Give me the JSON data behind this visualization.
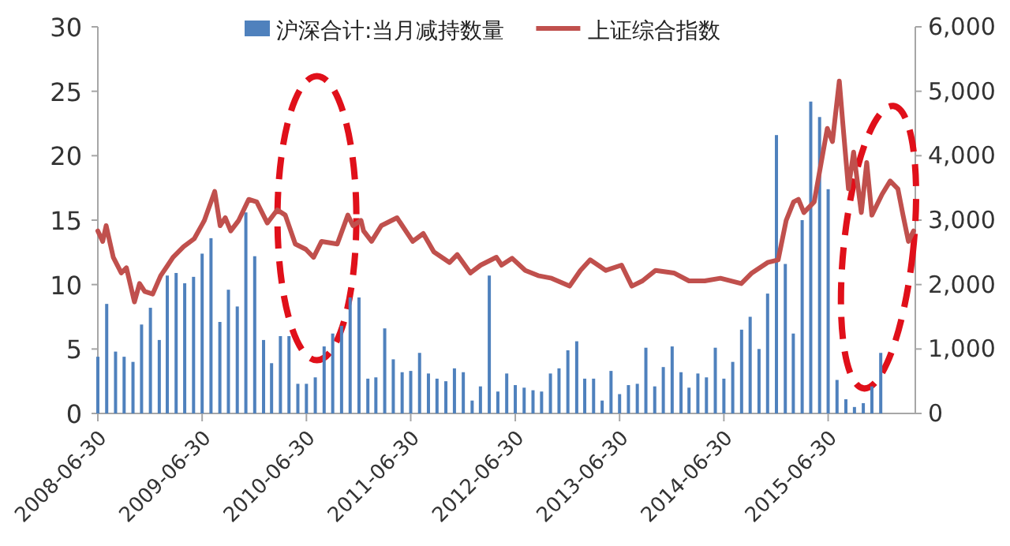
{
  "chart_data": {
    "type": "bar",
    "xlim": [
      "2008-06-30",
      "2016-04-30"
    ],
    "xticks": [
      "2008-06-30",
      "2009-06-30",
      "2010-06-30",
      "2011-06-30",
      "2012-06-30",
      "2013-06-30",
      "2014-06-30",
      "2015-06-30"
    ],
    "ylim": [
      0,
      30
    ],
    "yticks": [
      0,
      5,
      10,
      15,
      20,
      25,
      30
    ],
    "y2lim": [
      0,
      6000
    ],
    "y2ticks": [
      0,
      {
        "value": 1000,
        "label": "1,000"
      },
      {
        "value": 2000,
        "label": "2,000"
      },
      {
        "value": 3000,
        "label": "3,000"
      },
      {
        "value": 4000,
        "label": "4,000"
      },
      {
        "value": 5000,
        "label": "5,000"
      },
      {
        "value": 6000,
        "label": "6,000"
      }
    ],
    "legend": "top",
    "series": [
      {
        "name": "沪深合计:当月减持数量",
        "color": "#4f81bd",
        "x": [
          "2008-06-30",
          "2008-07-31",
          "2008-08-31",
          "2008-09-30",
          "2008-10-31",
          "2008-11-30",
          "2008-12-31",
          "2009-01-31",
          "2009-02-28",
          "2009-03-31",
          "2009-04-30",
          "2009-05-31",
          "2009-06-30",
          "2009-07-31",
          "2009-08-31",
          "2009-09-30",
          "2009-10-31",
          "2009-11-30",
          "2009-12-31",
          "2010-01-31",
          "2010-02-28",
          "2010-03-31",
          "2010-04-30",
          "2010-05-31",
          "2010-06-30",
          "2010-07-31",
          "2010-08-31",
          "2010-09-30",
          "2010-10-31",
          "2010-11-30",
          "2010-12-31",
          "2011-01-31",
          "2011-02-28",
          "2011-03-31",
          "2011-04-30",
          "2011-05-31",
          "2011-06-30",
          "2011-07-31",
          "2011-08-31",
          "2011-09-30",
          "2011-10-31",
          "2011-11-30",
          "2011-12-31",
          "2012-01-31",
          "2012-02-29",
          "2012-03-31",
          "2012-04-30",
          "2012-05-31",
          "2012-06-30",
          "2012-07-31",
          "2012-08-31",
          "2012-09-30",
          "2012-10-31",
          "2012-11-30",
          "2012-12-31",
          "2013-01-31",
          "2013-02-28",
          "2013-03-31",
          "2013-04-30",
          "2013-05-31",
          "2013-06-30",
          "2013-07-31",
          "2013-08-31",
          "2013-09-30",
          "2013-10-31",
          "2013-11-30",
          "2013-12-31",
          "2014-01-31",
          "2014-02-28",
          "2014-03-31",
          "2014-04-30",
          "2014-05-31",
          "2014-06-30",
          "2014-07-31",
          "2014-08-31",
          "2014-09-30",
          "2014-10-31",
          "2014-11-30",
          "2014-12-31",
          "2015-01-31",
          "2015-02-28",
          "2015-03-31",
          "2015-04-30",
          "2015-05-31",
          "2015-06-30",
          "2015-07-31",
          "2015-08-31",
          "2015-09-30",
          "2015-10-31",
          "2015-11-30",
          "2015-12-31"
        ],
        "values": [
          4.4,
          8.5,
          4.8,
          4.4,
          4.0,
          6.9,
          8.2,
          5.7,
          10.7,
          10.9,
          10.1,
          10.6,
          12.4,
          13.6,
          7.1,
          9.6,
          8.3,
          15.6,
          12.2,
          5.7,
          3.9,
          6.0,
          6.0,
          2.3,
          2.3,
          2.8,
          5.2,
          6.2,
          6.8,
          9.0,
          9.0,
          2.7,
          2.8,
          6.6,
          4.2,
          3.2,
          3.3,
          4.7,
          3.1,
          2.7,
          2.5,
          3.5,
          3.2,
          1.0,
          2.1,
          10.7,
          1.7,
          3.1,
          2.2,
          2.0,
          1.8,
          1.7,
          3.1,
          3.5,
          4.9,
          5.6,
          2.7,
          2.7,
          1.0,
          3.3,
          1.5,
          2.2,
          2.3,
          5.1,
          2.1,
          3.6,
          5.2,
          3.2,
          2.0,
          3.1,
          2.8,
          5.1,
          2.7,
          4.0,
          6.5,
          7.5,
          5.0,
          9.3,
          21.6,
          11.6,
          6.2,
          15.0,
          24.2,
          23.0,
          17.4,
          2.6,
          1.1,
          0.5,
          0.8,
          2.1,
          4.7
        ]
      },
      {
        "name": "上证综合指数",
        "type": "line",
        "axis": "y2",
        "color": "#c0504d",
        "x": [
          "2008-06-30",
          "2008-07-17",
          "2008-07-29",
          "2008-08-23",
          "2008-09-20",
          "2008-10-08",
          "2008-11-05",
          "2008-11-23",
          "2008-12-11",
          "2009-01-08",
          "2009-02-05",
          "2009-03-02",
          "2009-03-20",
          "2009-04-26",
          "2009-06-02",
          "2009-07-08",
          "2009-08-13",
          "2009-09-01",
          "2009-09-19",
          "2009-10-08",
          "2009-11-05",
          "2009-12-10",
          "2010-01-07",
          "2010-02-13",
          "2010-03-20",
          "2010-04-17",
          "2010-05-22",
          "2010-06-28",
          "2010-07-25",
          "2010-08-22",
          "2010-10-16",
          "2010-11-22",
          "2010-12-10",
          "2011-01-07",
          "2011-01-16",
          "2011-02-13",
          "2011-03-19",
          "2011-05-13",
          "2011-07-07",
          "2011-08-13",
          "2011-09-19",
          "2011-11-13",
          "2011-12-10",
          "2012-01-25",
          "2012-03-01",
          "2012-04-25",
          "2012-05-13",
          "2012-06-19",
          "2012-08-04",
          "2012-09-18",
          "2012-11-04",
          "2013-01-06",
          "2013-02-13",
          "2013-03-19",
          "2013-05-13",
          "2013-07-07",
          "2013-08-12",
          "2013-09-18",
          "2013-11-03",
          "2014-01-06",
          "2014-02-28",
          "2014-04-24",
          "2014-06-18",
          "2014-08-30",
          "2014-10-06",
          "2014-11-30",
          "2015-01-06",
          "2015-02-03",
          "2015-03-01",
          "2015-03-18",
          "2015-04-06",
          "2015-05-12",
          "2015-06-09",
          "2015-06-27",
          "2015-07-15",
          "2015-08-08",
          "2015-08-21",
          "2015-09-09",
          "2015-09-27",
          "2015-10-24",
          "2015-11-12",
          "2015-11-30",
          "2016-01-05",
          "2016-02-02",
          "2016-02-29",
          "2016-03-18",
          "2016-04-06",
          "2016-04-24"
        ],
        "values": [
          2833,
          2670,
          2914,
          2424,
          2180,
          2261,
          1731,
          2016,
          1894,
          1853,
          2139,
          2302,
          2424,
          2588,
          2710,
          2996,
          3445,
          2914,
          3037,
          2833,
          2996,
          3322,
          3282,
          2955,
          3159,
          3078,
          2629,
          2547,
          2424,
          2670,
          2629,
          3078,
          2914,
          2996,
          2833,
          2670,
          2914,
          3037,
          2670,
          2792,
          2506,
          2343,
          2465,
          2180,
          2302,
          2424,
          2302,
          2408,
          2220,
          2139,
          2098,
          1976,
          2220,
          2384,
          2220,
          2302,
          1976,
          2057,
          2220,
          2180,
          2057,
          2057,
          2098,
          2016,
          2180,
          2343,
          2384,
          2996,
          3282,
          3322,
          3118,
          3282,
          3976,
          4424,
          4220,
          5159,
          4465,
          3486,
          4057,
          3118,
          3894,
          3078,
          3404,
          3608,
          3486,
          3078,
          2670,
          2833
        ]
      }
    ]
  }
}
